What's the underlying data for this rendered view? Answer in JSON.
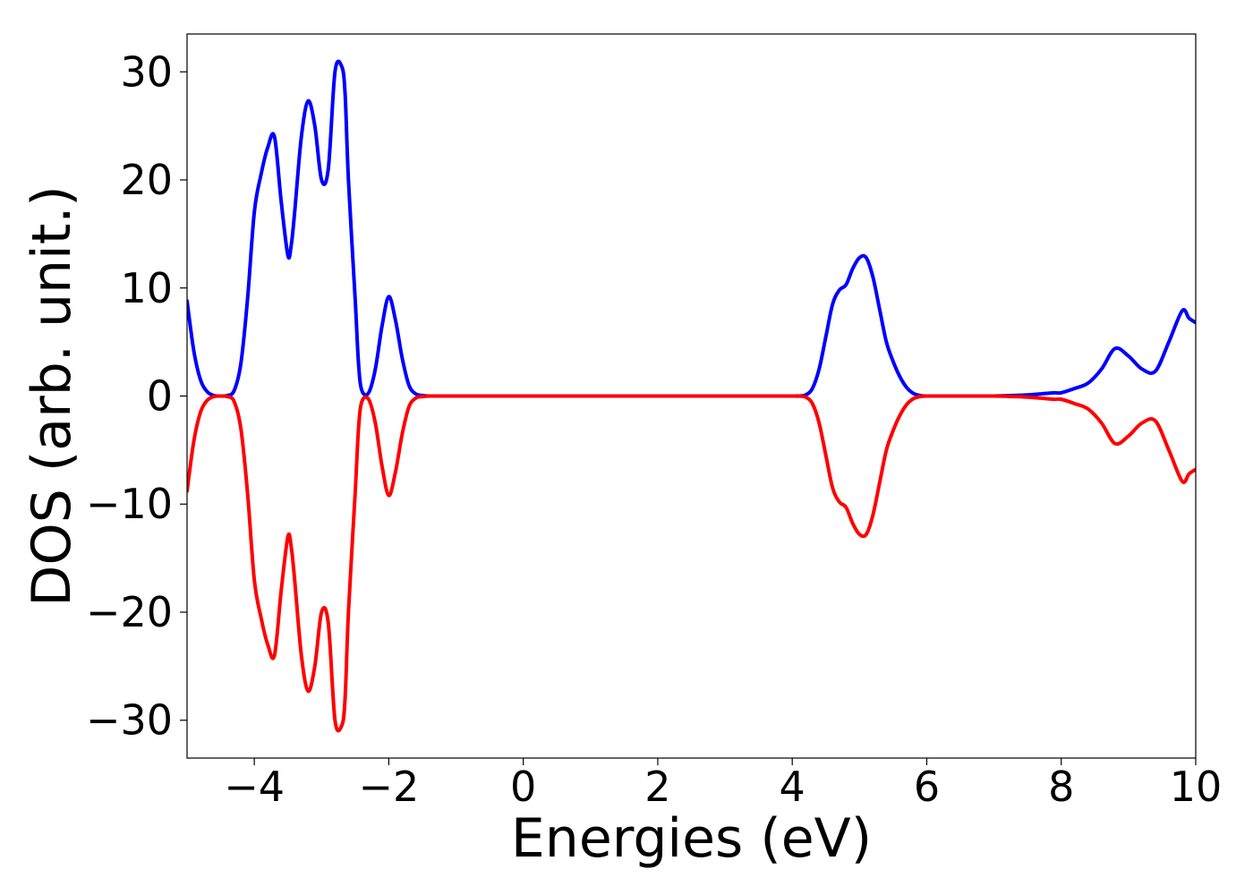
{
  "chart_data": {
    "type": "line",
    "title": "",
    "xlabel": "Energies (eV)",
    "ylabel": "DOS (arb. unit.)",
    "xlim": [
      -5,
      10
    ],
    "ylim": [
      -33.5,
      33.5
    ],
    "xticks": [
      -4,
      -2,
      0,
      2,
      4,
      6,
      8,
      10
    ],
    "yticks": [
      -30,
      -20,
      -10,
      0,
      10,
      20,
      30
    ],
    "xtick_labels": [
      "−4",
      "−2",
      "0",
      "2",
      "4",
      "6",
      "8",
      "10"
    ],
    "ytick_labels": [
      "−30",
      "−20",
      "−10",
      "0",
      "10",
      "20",
      "30"
    ],
    "grid": false,
    "legend": "none",
    "series": [
      {
        "color": "#0000ff",
        "x": [
          -5.0,
          -4.9,
          -4.8,
          -4.7,
          -4.6,
          -4.5,
          -4.4,
          -4.3,
          -4.2,
          -4.1,
          -4.0,
          -3.9,
          -3.8,
          -3.7,
          -3.6,
          -3.5,
          -3.45,
          -3.4,
          -3.3,
          -3.2,
          -3.1,
          -3.0,
          -2.9,
          -2.8,
          -2.7,
          -2.65,
          -2.6,
          -2.5,
          -2.45,
          -2.4,
          -2.3,
          -2.2,
          -2.1,
          -2.0,
          -1.9,
          -1.8,
          -1.7,
          -1.6,
          -1.5,
          -1.4,
          -1.3,
          -1.2,
          -1.1,
          -1.05,
          -1.0,
          -0.9,
          -0.8,
          -0.7,
          -0.6,
          -0.5,
          0.0,
          1.0,
          2.0,
          3.0,
          3.8,
          4.0,
          4.1,
          4.2,
          4.3,
          4.4,
          4.5,
          4.6,
          4.7,
          4.8,
          4.9,
          5.0,
          5.1,
          5.2,
          5.3,
          5.4,
          5.5,
          5.6,
          5.7,
          5.8,
          5.9,
          6.0,
          6.1,
          6.2,
          6.3,
          6.5,
          7.0,
          7.3,
          7.5,
          7.7,
          7.9,
          8.0,
          8.2,
          8.4,
          8.6,
          8.8,
          9.0,
          9.2,
          9.4,
          9.6,
          9.8,
          9.9,
          10.0
        ],
        "y": [
          8.8,
          4.2,
          1.5,
          0.4,
          0.05,
          0.0,
          0.05,
          0.5,
          3.0,
          9.0,
          17.0,
          20.5,
          23.0,
          24.0,
          18.0,
          13.0,
          14.0,
          17.0,
          24.0,
          27.3,
          25.0,
          20.0,
          21.0,
          30.0,
          30.5,
          28.0,
          20.0,
          9.0,
          3.0,
          0.5,
          0.3,
          2.5,
          6.5,
          9.2,
          7.0,
          3.5,
          1.0,
          0.2,
          0.05,
          0.0,
          0.0,
          0.0,
          0.0,
          0.0,
          0.0,
          0.0,
          0.0,
          0.0,
          0.0,
          0.0,
          0.0,
          0.0,
          0.0,
          0.0,
          0.0,
          0.0,
          0.0,
          0.1,
          0.7,
          2.5,
          5.5,
          8.5,
          9.8,
          10.3,
          11.8,
          12.8,
          12.8,
          11.0,
          8.0,
          5.0,
          3.2,
          1.8,
          0.8,
          0.25,
          0.05,
          0.0,
          0.0,
          0.0,
          0.0,
          0.0,
          0.0,
          0.05,
          0.1,
          0.2,
          0.3,
          0.3,
          0.7,
          1.2,
          2.5,
          4.4,
          3.7,
          2.5,
          2.3,
          5.0,
          7.9,
          7.2,
          6.8
        ]
      },
      {
        "color": "#ff0000",
        "x": [
          -5.0,
          -4.9,
          -4.8,
          -4.7,
          -4.6,
          -4.5,
          -4.4,
          -4.3,
          -4.2,
          -4.1,
          -4.0,
          -3.9,
          -3.8,
          -3.7,
          -3.6,
          -3.5,
          -3.45,
          -3.4,
          -3.3,
          -3.2,
          -3.1,
          -3.0,
          -2.9,
          -2.8,
          -2.7,
          -2.65,
          -2.6,
          -2.5,
          -2.45,
          -2.4,
          -2.3,
          -2.2,
          -2.1,
          -2.0,
          -1.9,
          -1.8,
          -1.7,
          -1.6,
          -1.5,
          -1.4,
          -1.3,
          -1.2,
          -1.1,
          -1.05,
          -1.0,
          -0.9,
          -0.8,
          -0.7,
          -0.6,
          -0.5,
          0.0,
          1.0,
          2.0,
          3.0,
          3.8,
          4.0,
          4.1,
          4.2,
          4.3,
          4.4,
          4.5,
          4.6,
          4.7,
          4.8,
          4.9,
          5.0,
          5.1,
          5.2,
          5.3,
          5.4,
          5.5,
          5.6,
          5.7,
          5.8,
          5.9,
          6.0,
          6.1,
          6.2,
          6.3,
          6.5,
          7.0,
          7.3,
          7.5,
          7.7,
          7.9,
          8.0,
          8.2,
          8.4,
          8.6,
          8.8,
          9.0,
          9.2,
          9.4,
          9.6,
          9.8,
          9.9,
          10.0
        ],
        "y": [
          -8.8,
          -4.2,
          -1.5,
          -0.4,
          -0.05,
          0.0,
          -0.05,
          -0.5,
          -3.0,
          -9.0,
          -17.0,
          -20.5,
          -23.0,
          -24.0,
          -18.0,
          -13.0,
          -14.0,
          -17.0,
          -24.0,
          -27.3,
          -25.0,
          -20.0,
          -21.0,
          -30.0,
          -30.5,
          -28.0,
          -20.0,
          -9.0,
          -3.0,
          -0.5,
          -0.3,
          -2.5,
          -6.5,
          -9.2,
          -7.0,
          -3.5,
          -1.0,
          -0.2,
          -0.05,
          0.0,
          0.0,
          0.0,
          0.0,
          0.0,
          0.0,
          0.0,
          0.0,
          0.0,
          0.0,
          0.0,
          0.0,
          0.0,
          0.0,
          0.0,
          0.0,
          0.0,
          0.0,
          -0.1,
          -0.7,
          -2.5,
          -5.5,
          -8.5,
          -9.8,
          -10.3,
          -11.8,
          -12.8,
          -12.8,
          -11.0,
          -8.0,
          -5.0,
          -3.2,
          -1.8,
          -0.8,
          -0.25,
          -0.05,
          0.0,
          0.0,
          0.0,
          0.0,
          0.0,
          0.0,
          -0.05,
          -0.1,
          -0.2,
          -0.3,
          -0.3,
          -0.7,
          -1.2,
          -2.5,
          -4.4,
          -3.7,
          -2.5,
          -2.3,
          -5.0,
          -7.9,
          -7.2,
          -6.8
        ]
      }
    ]
  }
}
